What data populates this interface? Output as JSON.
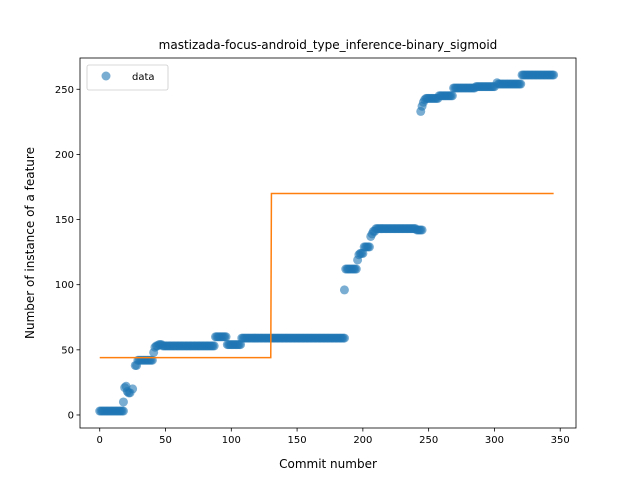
{
  "chart_data": {
    "type": "scatter",
    "title": "mastizada-focus-android_type_inference-binary_sigmoid",
    "xlabel": "Commit number",
    "ylabel": "Number of instance of a feature",
    "xlim": [
      -15,
      362
    ],
    "ylim": [
      -10,
      274
    ],
    "xticks": [
      0,
      50,
      100,
      150,
      200,
      250,
      300,
      350
    ],
    "yticks": [
      0,
      50,
      100,
      150,
      200,
      250
    ],
    "legend": {
      "position": "top-left",
      "entries": [
        "data"
      ]
    },
    "grid": false,
    "colors": {
      "data": "#1f77b4",
      "fit": "#ff7f0e"
    },
    "series": [
      {
        "name": "data",
        "kind": "scatter",
        "segments": [
          {
            "x_start": 0,
            "x_end": 18,
            "y": 3
          },
          {
            "x": 18,
            "y": 10
          },
          {
            "x": 19,
            "y": 21
          },
          {
            "x": 20,
            "y": 22
          },
          {
            "x": 21,
            "y": 18
          },
          {
            "x": 22,
            "y": 17
          },
          {
            "x": 23,
            "y": 17
          },
          {
            "x": 25,
            "y": 20
          },
          {
            "x_start": 27,
            "x_end": 28,
            "y": 38
          },
          {
            "x_start": 29,
            "x_end": 40,
            "y": 42
          },
          {
            "x": 41,
            "y": 48
          },
          {
            "x": 42,
            "y": 52
          },
          {
            "x_start": 43,
            "x_end": 44,
            "y": 53
          },
          {
            "x_start": 45,
            "x_end": 47,
            "y": 54
          },
          {
            "x_start": 48,
            "x_end": 87,
            "y": 53
          },
          {
            "x_start": 88,
            "x_end": 96,
            "y": 60
          },
          {
            "x_start": 97,
            "x_end": 107,
            "y": 54
          },
          {
            "x_start": 108,
            "x_end": 186,
            "y": 59
          },
          {
            "x": 186,
            "y": 96
          },
          {
            "x_start": 187,
            "x_end": 195,
            "y": 112
          },
          {
            "x": 196,
            "y": 119
          },
          {
            "x": 197,
            "y": 123
          },
          {
            "x_start": 198,
            "x_end": 200,
            "y": 124
          },
          {
            "x_start": 201,
            "x_end": 205,
            "y": 129
          },
          {
            "x": 206,
            "y": 137
          },
          {
            "x": 207,
            "y": 139
          },
          {
            "x_start": 208,
            "x_end": 209,
            "y": 141
          },
          {
            "x_start": 210,
            "x_end": 240,
            "y": 143
          },
          {
            "x_start": 241,
            "x_end": 245,
            "y": 142
          },
          {
            "x": 244,
            "y": 233
          },
          {
            "x": 245,
            "y": 237
          },
          {
            "x": 246,
            "y": 240
          },
          {
            "x": 247,
            "y": 242
          },
          {
            "x_start": 248,
            "x_end": 257,
            "y": 243
          },
          {
            "x_start": 258,
            "x_end": 268,
            "y": 245
          },
          {
            "x_start": 269,
            "x_end": 285,
            "y": 251
          },
          {
            "x_start": 286,
            "x_end": 300,
            "y": 252
          },
          {
            "x": 302,
            "y": 255
          },
          {
            "x_start": 303,
            "x_end": 320,
            "y": 254
          },
          {
            "x_start": 321,
            "x_end": 345,
            "y": 261
          }
        ]
      },
      {
        "name": "",
        "kind": "line",
        "x": [
          0,
          130,
          130,
          130.5,
          345
        ],
        "y": [
          44,
          44,
          44,
          170,
          170
        ]
      }
    ]
  }
}
